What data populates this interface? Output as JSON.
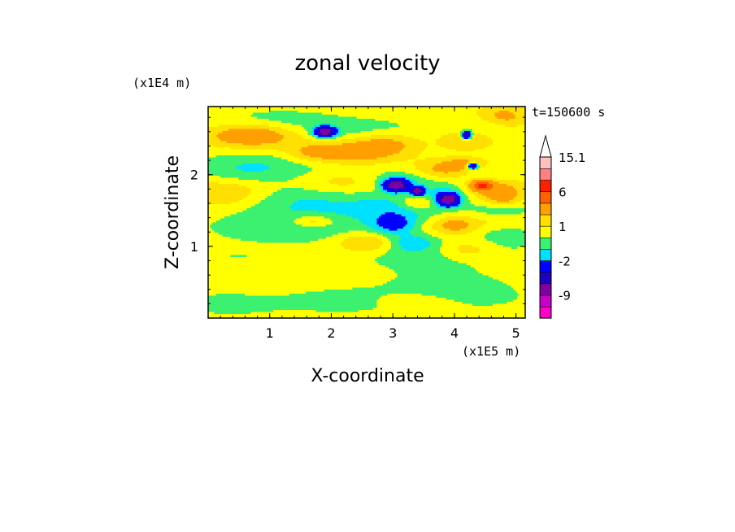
{
  "chart_data": {
    "type": "heatmap",
    "title": "zonal velocity",
    "xlabel": "X-coordinate",
    "ylabel": "Z-coordinate",
    "x_scale_note": "(x1E5 m)",
    "y_scale_note": "(x1E4 m)",
    "time_label": "t=150600 s",
    "xlim": [
      0,
      5.15
    ],
    "ylim": [
      0,
      2.95
    ],
    "x_ticks": [
      1,
      2,
      3,
      4,
      5
    ],
    "y_ticks": [
      1,
      2
    ],
    "colorbar": {
      "levels": [
        -15,
        -12,
        -9,
        -6,
        -4,
        -2,
        -1,
        0,
        1,
        2,
        4,
        6,
        9,
        12,
        15.1
      ],
      "labels": [
        {
          "value": 15.1,
          "text": "15.1"
        },
        {
          "value": 6,
          "text": "6"
        },
        {
          "value": 1,
          "text": "1"
        },
        {
          "value": -2,
          "text": "-2"
        },
        {
          "value": -9,
          "text": "-9"
        }
      ],
      "colors": [
        "#ff00c8",
        "#c800c8",
        "#8000a0",
        "#2000c0",
        "#0000ff",
        "#00e0ff",
        "#3cf070",
        "#ffff00",
        "#ffe000",
        "#ffa000",
        "#ff6000",
        "#ff2000",
        "#ff8080",
        "#ffc0c0"
      ],
      "extend_max": true
    },
    "field": {
      "background": 0.5,
      "features": [
        {
          "x": 2.6,
          "y": 0.25,
          "sx": 2.6,
          "sy": 0.2,
          "v": -0.7
        },
        {
          "x": 1.0,
          "y": 0.55,
          "sx": 0.45,
          "sy": 0.12,
          "v": 0.6
        },
        {
          "x": 4.0,
          "y": 0.45,
          "sx": 0.6,
          "sy": 0.12,
          "v": -0.6
        },
        {
          "x": 3.4,
          "y": 0.25,
          "sx": 0.5,
          "sy": 0.1,
          "v": 0.5
        },
        {
          "x": 0.3,
          "y": 0.18,
          "sx": 0.4,
          "sy": 0.08,
          "v": -0.6
        },
        {
          "x": 2.3,
          "y": 0.7,
          "sx": 0.7,
          "sy": 0.12,
          "v": 0.4
        },
        {
          "x": 0.5,
          "y": 0.85,
          "sx": 0.6,
          "sy": 0.1,
          "v": -0.5
        },
        {
          "x": 3.4,
          "y": 0.85,
          "sx": 0.8,
          "sy": 0.18,
          "v": -1.2
        },
        {
          "x": 3.3,
          "y": 1.05,
          "sx": 0.3,
          "sy": 0.08,
          "v": -1.8
        },
        {
          "x": 2.6,
          "y": 1.05,
          "sx": 0.35,
          "sy": 0.1,
          "v": 2.2
        },
        {
          "x": 4.2,
          "y": 0.95,
          "sx": 0.35,
          "sy": 0.1,
          "v": 1.5
        },
        {
          "x": 4.8,
          "y": 1.2,
          "sx": 0.4,
          "sy": 0.2,
          "v": -1.0
        },
        {
          "x": 3.0,
          "y": 1.3,
          "sx": 0.25,
          "sy": 0.1,
          "v": -2.5
        },
        {
          "x": 4.0,
          "y": 1.3,
          "sx": 0.3,
          "sy": 0.1,
          "v": 2.5
        },
        {
          "x": 4.8,
          "y": 1.35,
          "sx": 0.3,
          "sy": 0.08,
          "v": 1.5
        },
        {
          "x": 3.2,
          "y": 1.55,
          "sx": 0.5,
          "sy": 0.12,
          "v": -1.3
        },
        {
          "x": 1.2,
          "y": 1.25,
          "sx": 0.9,
          "sy": 0.15,
          "v": -1.0
        },
        {
          "x": 2.5,
          "y": 1.5,
          "sx": 1.2,
          "sy": 0.2,
          "v": -1.1
        },
        {
          "x": 1.7,
          "y": 1.35,
          "sx": 0.25,
          "sy": 0.06,
          "v": 2.0
        },
        {
          "x": 3.4,
          "y": 1.6,
          "sx": 0.25,
          "sy": 0.08,
          "v": 2.2
        },
        {
          "x": 4.8,
          "y": 1.55,
          "sx": 0.3,
          "sy": 0.12,
          "v": -1.0
        },
        {
          "x": 3.9,
          "y": 1.75,
          "sx": 0.35,
          "sy": 0.1,
          "v": -1.5
        },
        {
          "x": 3.9,
          "y": 1.65,
          "sx": 0.12,
          "sy": 0.06,
          "v": -8.0
        },
        {
          "x": 0.3,
          "y": 1.75,
          "sx": 0.5,
          "sy": 0.15,
          "v": 2.0
        },
        {
          "x": 1.3,
          "y": 1.65,
          "sx": 0.8,
          "sy": 0.15,
          "v": -1.0
        },
        {
          "x": 4.6,
          "y": 1.8,
          "sx": 0.4,
          "sy": 0.12,
          "v": 2.5
        },
        {
          "x": 4.8,
          "y": 1.65,
          "sx": 0.2,
          "sy": 0.08,
          "v": 2.0
        },
        {
          "x": 2.2,
          "y": 1.9,
          "sx": 0.5,
          "sy": 0.12,
          "v": 1.2
        },
        {
          "x": 1.5,
          "y": 2.15,
          "sx": 0.8,
          "sy": 0.15,
          "v": -1.0
        },
        {
          "x": 3.3,
          "y": 1.95,
          "sx": 0.5,
          "sy": 0.1,
          "v": -1.4
        },
        {
          "x": 3.05,
          "y": 1.85,
          "sx": 0.14,
          "sy": 0.06,
          "v": -8.0
        },
        {
          "x": 3.4,
          "y": 1.77,
          "sx": 0.07,
          "sy": 0.04,
          "v": -8.0
        },
        {
          "x": 0.5,
          "y": 2.05,
          "sx": 0.55,
          "sy": 0.15,
          "v": -1.3
        },
        {
          "x": 4.5,
          "y": 2.0,
          "sx": 0.4,
          "sy": 0.12,
          "v": -1.0
        },
        {
          "x": 3.8,
          "y": 2.05,
          "sx": 0.35,
          "sy": 0.1,
          "v": 2.3
        },
        {
          "x": 4.45,
          "y": 1.85,
          "sx": 0.12,
          "sy": 0.05,
          "v": 5.0
        },
        {
          "x": 2.4,
          "y": 2.3,
          "sx": 0.45,
          "sy": 0.12,
          "v": 2.3
        },
        {
          "x": 1.7,
          "y": 2.3,
          "sx": 0.35,
          "sy": 0.1,
          "v": 2.0
        },
        {
          "x": 2.9,
          "y": 2.45,
          "sx": 0.4,
          "sy": 0.12,
          "v": 2.0
        },
        {
          "x": 4.2,
          "y": 2.15,
          "sx": 0.25,
          "sy": 0.06,
          "v": 2.0
        },
        {
          "x": 4.3,
          "y": 2.12,
          "sx": 0.06,
          "sy": 0.03,
          "v": -8.0
        },
        {
          "x": 0.7,
          "y": 2.55,
          "sx": 0.5,
          "sy": 0.12,
          "v": 3.0
        },
        {
          "x": 4.2,
          "y": 2.5,
          "sx": 0.3,
          "sy": 0.1,
          "v": 2.0
        },
        {
          "x": 4.2,
          "y": 2.55,
          "sx": 0.06,
          "sy": 0.04,
          "v": -8.0
        },
        {
          "x": 1.9,
          "y": 2.6,
          "sx": 0.12,
          "sy": 0.05,
          "v": -8.0
        },
        {
          "x": 2.7,
          "y": 2.6,
          "sx": 0.7,
          "sy": 0.12,
          "v": -1.1
        },
        {
          "x": 1.1,
          "y": 2.75,
          "sx": 0.8,
          "sy": 0.12,
          "v": -1.0
        },
        {
          "x": 4.8,
          "y": 2.8,
          "sx": 0.3,
          "sy": 0.12,
          "v": 2.0
        },
        {
          "x": 4.5,
          "y": 2.65,
          "sx": 0.4,
          "sy": 0.1,
          "v": -1.1
        }
      ]
    }
  }
}
